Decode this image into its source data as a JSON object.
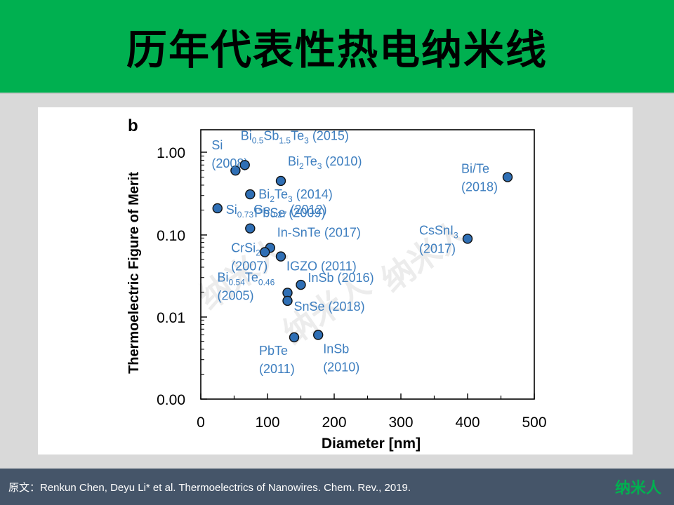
{
  "header": {
    "title": "历年代表性热电纳米线"
  },
  "footer": {
    "citation": "原文：Renkun Chen, Deyu Li* et al. Thermoelectrics of Nanowires. Chem. Rev., 2019.",
    "logo": "纳米人"
  },
  "watermark": "纳米人",
  "colors": {
    "header_bg": "#00b050",
    "footer_bg": "#455569",
    "point_fill": "#2f6fb5",
    "label": "#3d7ebf"
  },
  "chart_data": {
    "type": "scatter",
    "panel_label": "b",
    "xlabel": "Diameter [nm]",
    "ylabel": "Thermoelectric Figure of Merit",
    "xlim": [
      0,
      500
    ],
    "x_ticks": [
      "0",
      "100",
      "200",
      "300",
      "400",
      "500"
    ],
    "y_scale": "log",
    "y_ticks": [
      "1.00",
      "0.10",
      "0.01",
      "0.00"
    ],
    "grid": false,
    "points": [
      {
        "name": "Si (2008)",
        "label_lines": [
          "Si",
          "(2008)"
        ],
        "x": 52,
        "y": 0.6
      },
      {
        "name": "Bi0.5Sb1.5Te3 (2015)",
        "label_lines": [
          "Bi_{0.5}Sb_{1.5}Te_{3} (2015)"
        ],
        "x": 66,
        "y": 0.7
      },
      {
        "name": "Bi2Te3 (2010)",
        "label_lines": [
          "Bi_{2}Te_{3} (2010)"
        ],
        "x": 120,
        "y": 0.45
      },
      {
        "name": "Bi2Te3 (2014)",
        "label_lines": [
          "Bi_{2}Te_{3} (2014)"
        ],
        "x": 74,
        "y": 0.31
      },
      {
        "name": "Si0.73Ge0.27 (2012)",
        "label_lines": [
          "Si_{0.73}Ge_{0.27} (2012)"
        ],
        "x": 25,
        "y": 0.21
      },
      {
        "name": "PbSe (2009)",
        "label_lines": [
          "PbSe (2009)"
        ],
        "x": 74,
        "y": 0.12
      },
      {
        "name": "In-SnTe (2017)",
        "label_lines": [
          "In-SnTe (2017)"
        ],
        "x": 104,
        "y": 0.07
      },
      {
        "name": "CrSi2 (2007)",
        "label_lines": [
          "CrSi_{2}",
          "(2007)"
        ],
        "x": 96,
        "y": 0.062
      },
      {
        "name": "IGZO (2011)",
        "label_lines": [
          "IGZO (2011)"
        ],
        "x": 120,
        "y": 0.055
      },
      {
        "name": "InSb (2016)",
        "label_lines": [
          "InSb (2016)"
        ],
        "x": 150,
        "y": 0.025
      },
      {
        "name": "Bi0.54Te0.46 (2005)",
        "label_lines": [
          "Bi_{0.54}Te_{0.46}",
          "(2005)"
        ],
        "x": 130,
        "y": 0.02
      },
      {
        "name": "SnSe (2018)",
        "label_lines": [
          "SnSe (2018)"
        ],
        "x": 130,
        "y": 0.016
      },
      {
        "name": "PbTe (2011)",
        "label_lines": [
          "PbTe",
          "(2011)"
        ],
        "x": 140,
        "y": 0.0058
      },
      {
        "name": "InSb (2010)",
        "label_lines": [
          "InSb",
          "(2010)"
        ],
        "x": 176,
        "y": 0.0062
      },
      {
        "name": "CsSnI3 (2017)",
        "label_lines": [
          "CsSnI_{3}",
          "(2017)"
        ],
        "x": 400,
        "y": 0.09
      },
      {
        "name": "Bi/Te (2018)",
        "label_lines": [
          "Bi/Te",
          "(2018)"
        ],
        "x": 460,
        "y": 0.5
      }
    ]
  }
}
